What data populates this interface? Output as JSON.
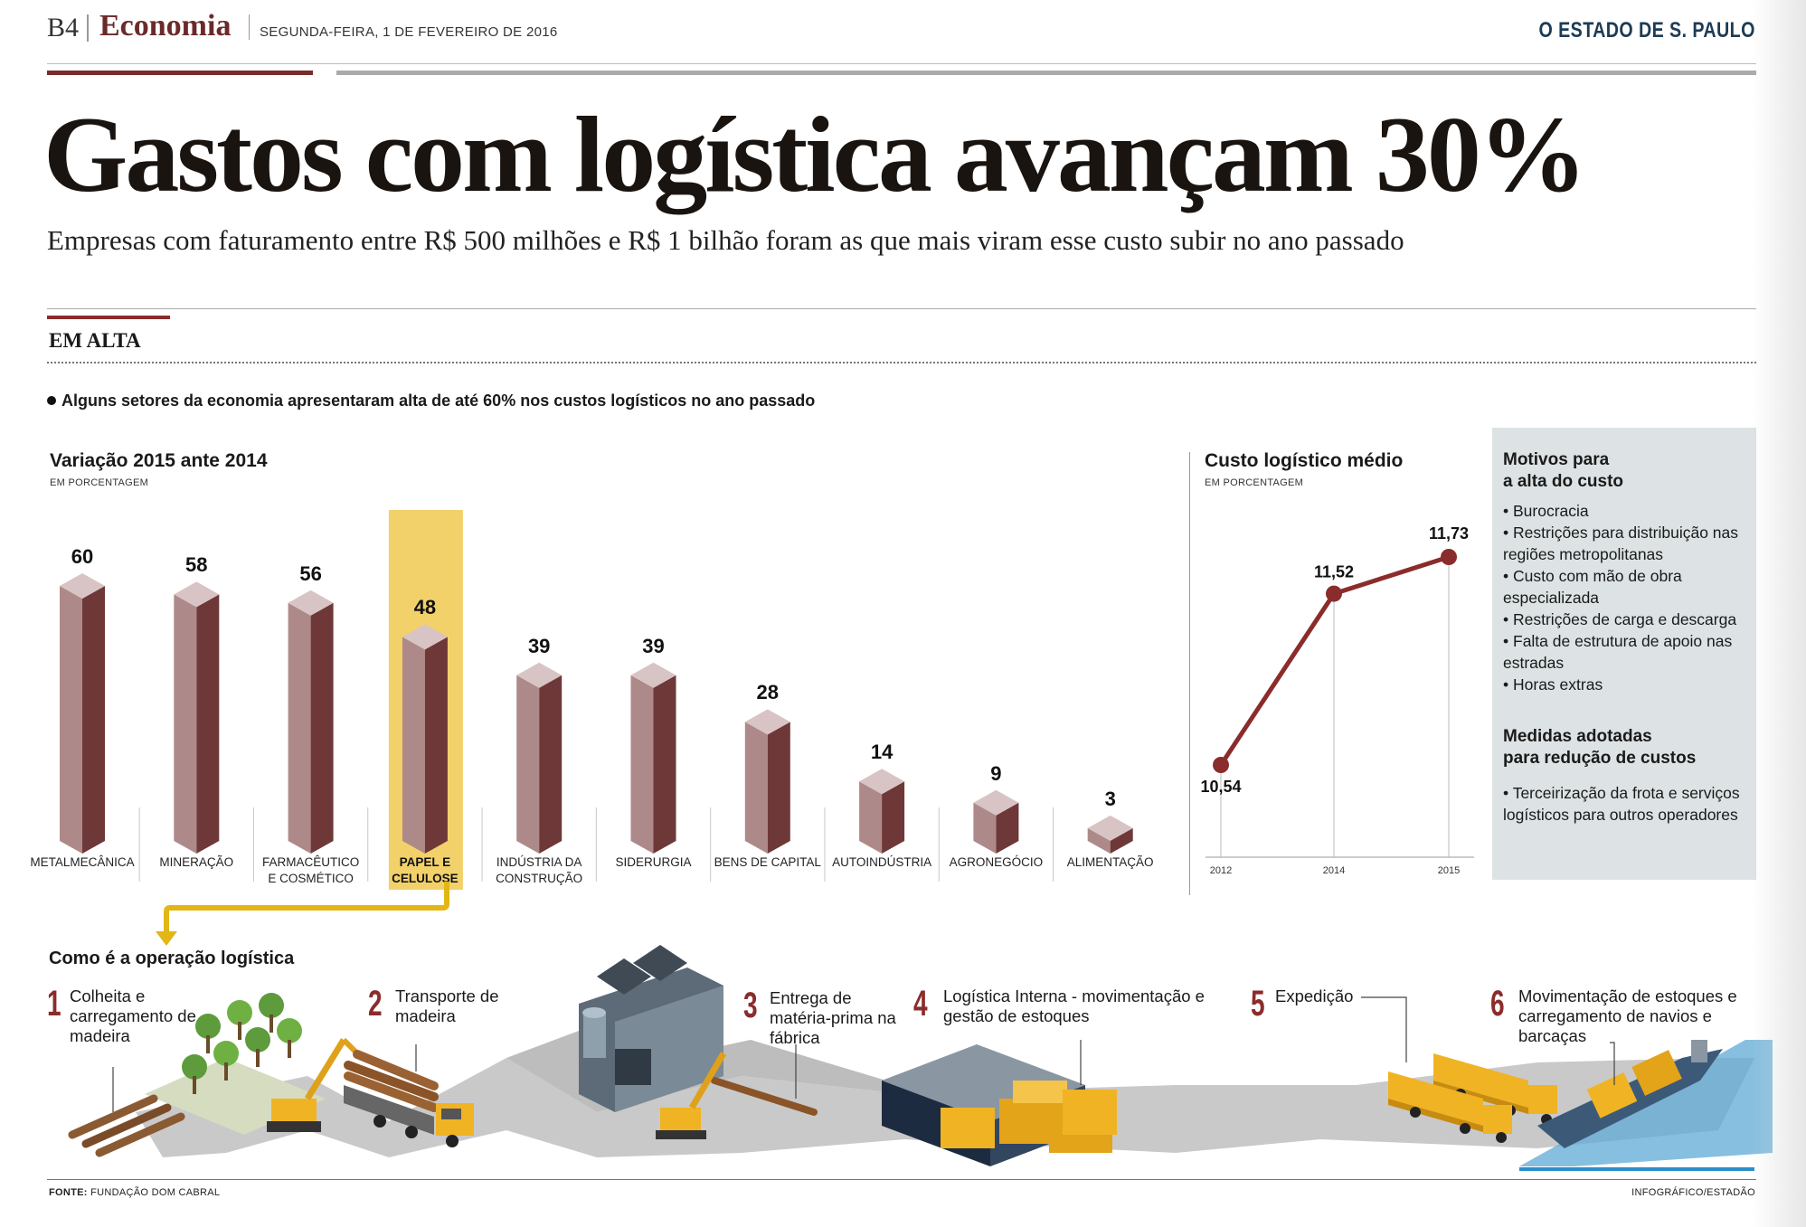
{
  "header": {
    "page": "B4",
    "section": "Economia",
    "date": "SEGUNDA-FEIRA, 1 DE FEVEREIRO DE 2016",
    "newspaper": "O ESTADO DE S. PAULO"
  },
  "headline": "Gastos com logística avançam 30%",
  "subheadline": "Empresas com faturamento entre R$ 500 milhões e R$ 1 bilhão foram as que mais viram esse custo subir no ano passado",
  "section_label": "EM ALTA",
  "lead": "Alguns setores da economia apresentaram alta de até 60% nos custos logísticos no ano passado",
  "colors": {
    "bar_front": "#ad8a89",
    "bar_side": "#6e3838",
    "bar_top": "#d8c4c4",
    "highlight": "#f2d16b",
    "line": "#8b2c2c",
    "accent": "#8b2c2c",
    "box_bg": "#dde3e4",
    "arrow": "#e2b615"
  },
  "chart_data": [
    {
      "type": "bar",
      "title": "Variação 2015 ante 2014",
      "subtitle": "EM PORCENTAGEM",
      "categories": [
        "METALMECÂNICA",
        "MINERAÇÃO",
        "FARMACÊUTICO E COSMÉTICO",
        "PAPEL E CELULOSE",
        "INDÚSTRIA DA CONSTRUÇÃO",
        "SIDERURGIA",
        "BENS DE CAPITAL",
        "AUTOINDÚSTRIA",
        "AGRONEGÓCIO",
        "ALIMENTAÇÃO"
      ],
      "category_lines": [
        [
          "METALMECÂNICA"
        ],
        [
          "MINERAÇÃO"
        ],
        [
          "FARMACÊUTICO",
          "E COSMÉTICO"
        ],
        [
          "PAPEL E",
          "CELULOSE"
        ],
        [
          "INDÚSTRIA DA",
          "CONSTRUÇÃO"
        ],
        [
          "SIDERURGIA"
        ],
        [
          "BENS DE CAPITAL"
        ],
        [
          "AUTOINDÚSTRIA"
        ],
        [
          "AGRONEGÓCIO"
        ],
        [
          "ALIMENTAÇÃO"
        ]
      ],
      "values": [
        60,
        58,
        56,
        48,
        39,
        39,
        28,
        14,
        9,
        3
      ],
      "highlight": "PAPEL E CELULOSE",
      "ylim": [
        0,
        60
      ]
    },
    {
      "type": "line",
      "title": "Custo logístico médio",
      "subtitle": "EM PORCENTAGEM",
      "x": [
        "2012",
        "2014",
        "2015"
      ],
      "values": [
        10.54,
        11.52,
        11.73
      ],
      "value_labels": [
        "10,54",
        "11,52",
        "11,73"
      ]
    }
  ],
  "motivos": {
    "title": "Motivos para a alta do custo",
    "title_lines": [
      "Motivos para",
      "a alta do custo"
    ],
    "items": [
      "Burocracia",
      "Restrições para distribuição nas regiões metropolitanas",
      "Custo com mão de obra especializada",
      "Restrições de carga e descarga",
      "Falta de estrutura de apoio nas estradas",
      "Horas extras"
    ]
  },
  "medidas": {
    "title": "Medidas adotadas para redução de custos",
    "title_lines": [
      "Medidas adotadas",
      "para redução de custos"
    ],
    "items": [
      "Terceirização da frota e serviços logísticos para outros operadores"
    ]
  },
  "operation": {
    "title": "Como é a operação logística",
    "steps": [
      {
        "num": "1",
        "text": "Colheita e carregamento de madeira"
      },
      {
        "num": "2",
        "text": "Transporte de madeira"
      },
      {
        "num": "3",
        "text": "Entrega de matéria-prima na fábrica"
      },
      {
        "num": "4",
        "text": "Logística Interna - movimentação e gestão de estoques"
      },
      {
        "num": "5",
        "text": "Expedição"
      },
      {
        "num": "6",
        "text": "Movimentação de estoques e carregamento de navios e barcaças"
      }
    ]
  },
  "footer": {
    "source_label": "FONTE:",
    "source": "FUNDAÇÃO DOM CABRAL",
    "credit": "INFOGRÁFICO/ESTADÃO"
  }
}
